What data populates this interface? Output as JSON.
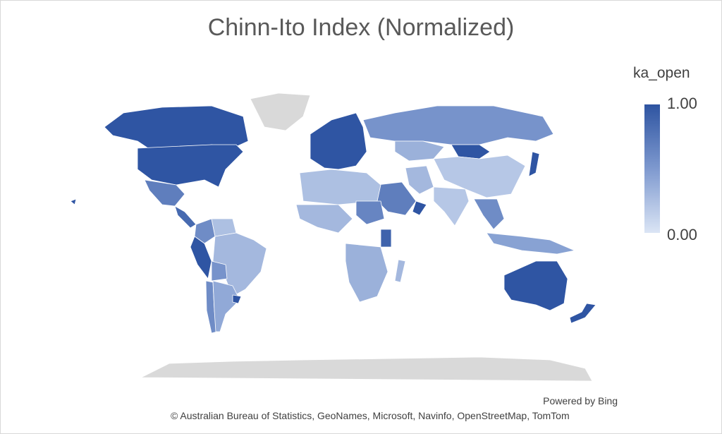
{
  "title": "Chinn-Ito Index (Normalized)",
  "legend": {
    "title": "ka_open",
    "max_label": "1.00",
    "min_label": "0.00",
    "color_high": "#2f55a3",
    "color_mid": "#7f9acf",
    "color_low": "#dbe5f5",
    "no_data_color": "#d9d9d9"
  },
  "footer": {
    "powered_by": "Powered by Bing",
    "attribution": "© Australian Bureau of Statistics, GeoNames, Microsoft, Navinfo, OpenStreetMap, TomTom"
  },
  "map_data": {
    "metric": "ka_open",
    "range": [
      0,
      1
    ],
    "regions": [
      {
        "name": "Canada",
        "value": 1.0
      },
      {
        "name": "United States",
        "value": 1.0
      },
      {
        "name": "Mexico",
        "value": 0.7
      },
      {
        "name": "Central America",
        "value": 0.85
      },
      {
        "name": "Colombia",
        "value": 0.6
      },
      {
        "name": "Venezuela",
        "value": 0.25
      },
      {
        "name": "Brazil",
        "value": 0.3
      },
      {
        "name": "Peru",
        "value": 1.0
      },
      {
        "name": "Bolivia",
        "value": 0.55
      },
      {
        "name": "Chile",
        "value": 0.6
      },
      {
        "name": "Argentina",
        "value": 0.4
      },
      {
        "name": "Uruguay",
        "value": 1.0
      },
      {
        "name": "Western Europe",
        "value": 1.0
      },
      {
        "name": "Russia",
        "value": 0.55
      },
      {
        "name": "Kazakhstan",
        "value": 0.35
      },
      {
        "name": "Mongolia",
        "value": 1.0
      },
      {
        "name": "China",
        "value": 0.2
      },
      {
        "name": "India",
        "value": 0.2
      },
      {
        "name": "Japan",
        "value": 1.0
      },
      {
        "name": "Saudi Arabia",
        "value": 0.7
      },
      {
        "name": "Oman",
        "value": 1.0
      },
      {
        "name": "Iran",
        "value": 0.3
      },
      {
        "name": "North Africa",
        "value": 0.25
      },
      {
        "name": "West Africa",
        "value": 0.3
      },
      {
        "name": "Sudan",
        "value": 0.65
      },
      {
        "name": "Kenya",
        "value": 0.9
      },
      {
        "name": "Zambia",
        "value": 1.0
      },
      {
        "name": "Southern Africa",
        "value": 0.35
      },
      {
        "name": "Madagascar",
        "value": 0.3
      },
      {
        "name": "Southeast Asia",
        "value": 0.6
      },
      {
        "name": "Indonesia",
        "value": 0.45
      },
      {
        "name": "Australia",
        "value": 1.0
      },
      {
        "name": "New Zealand",
        "value": 1.0
      },
      {
        "name": "Greenland",
        "value": null
      },
      {
        "name": "Antarctica",
        "value": null
      }
    ]
  }
}
